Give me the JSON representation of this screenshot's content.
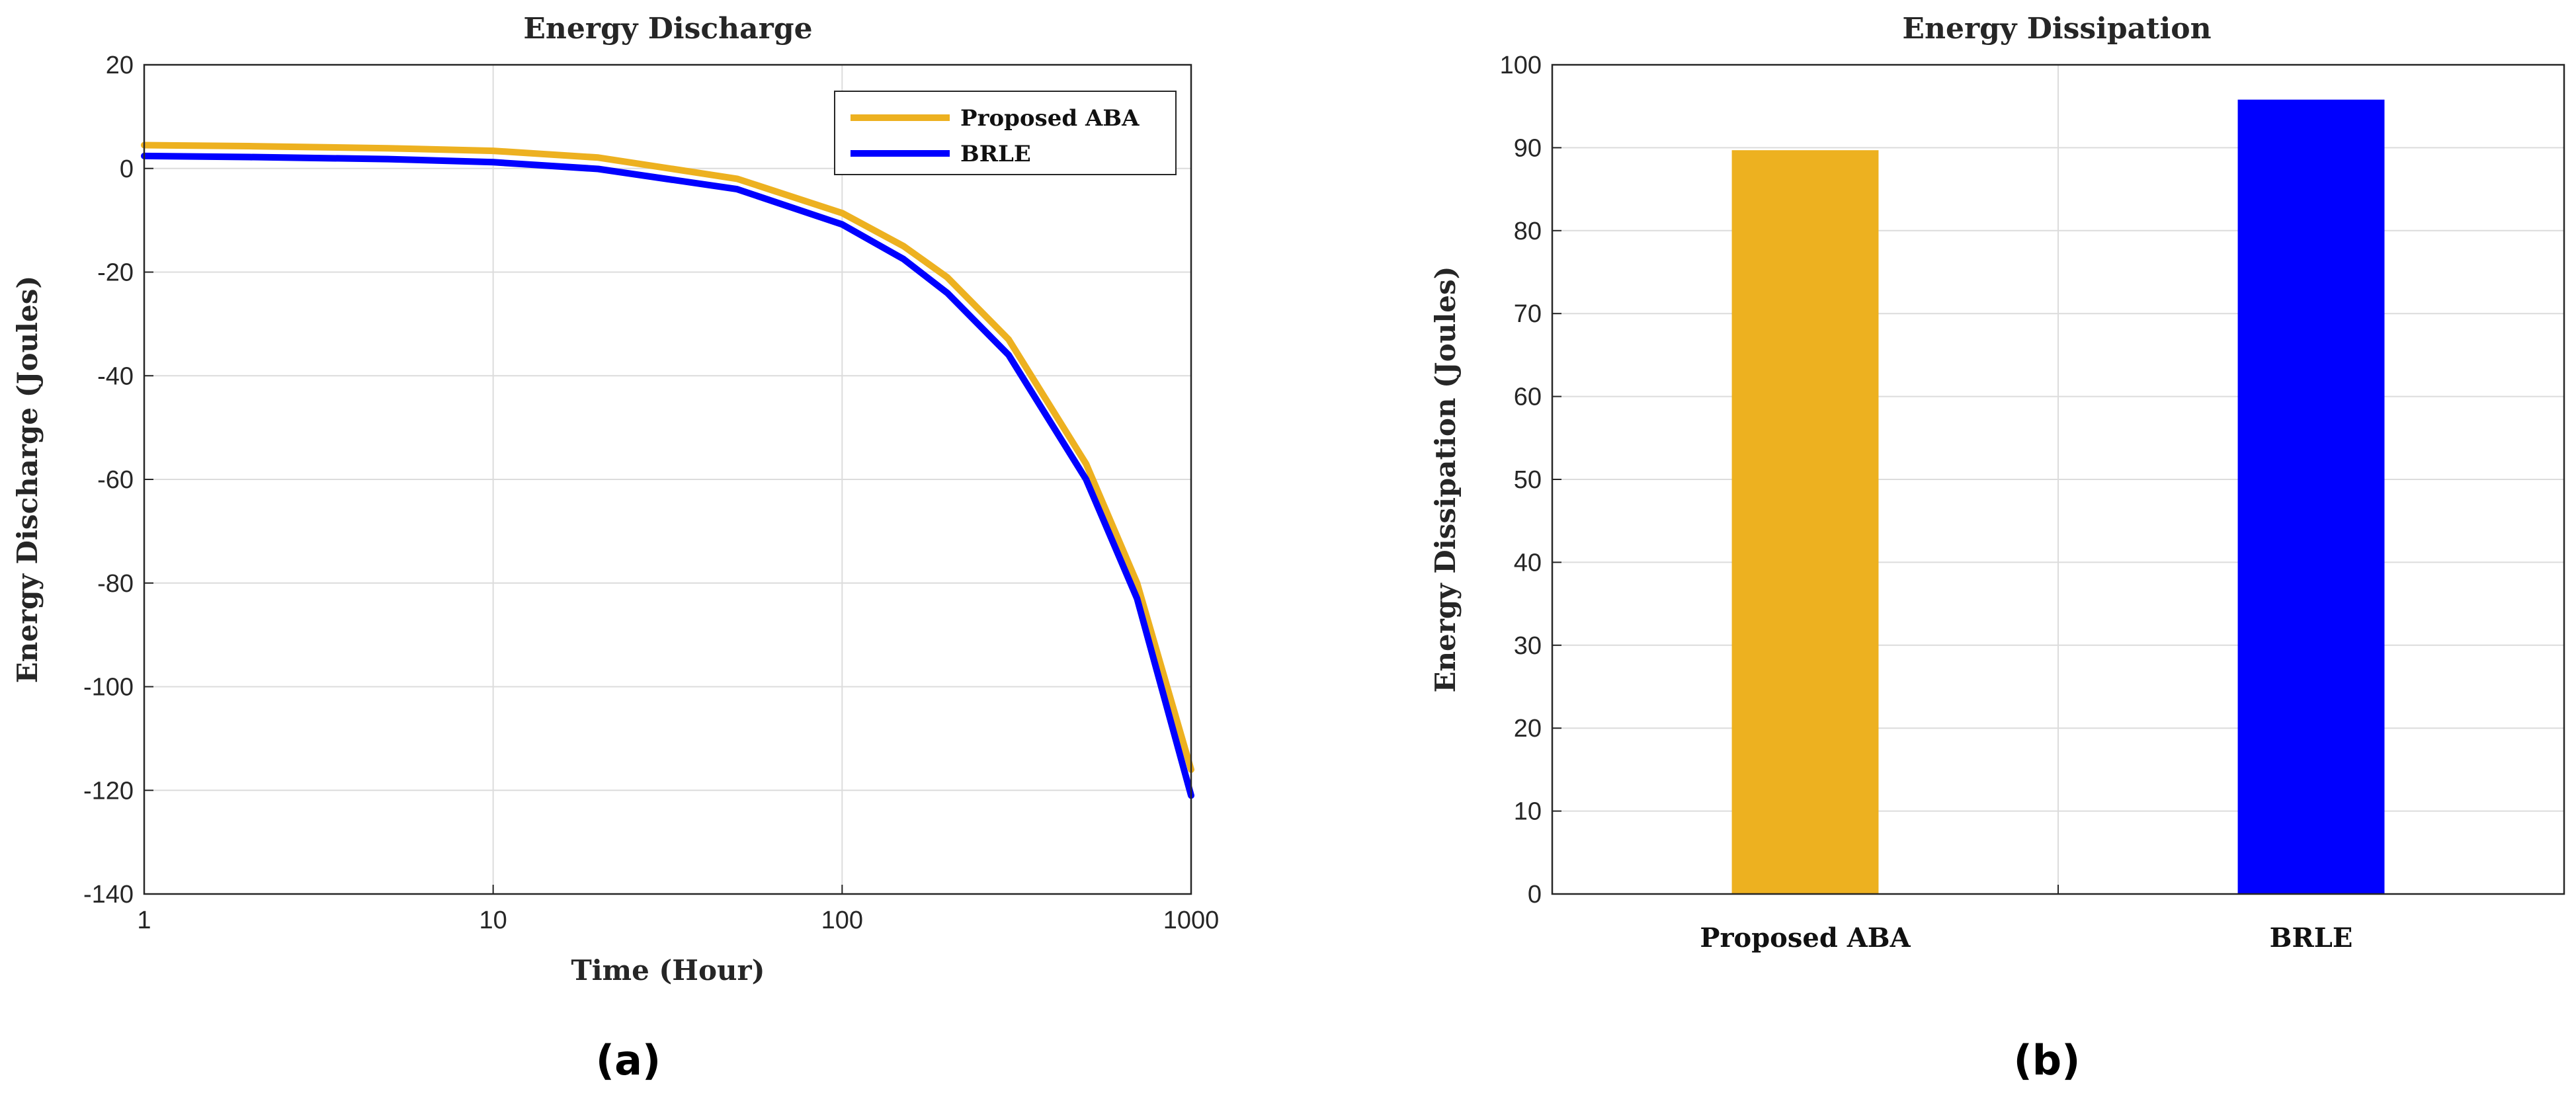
{
  "chart_data": [
    {
      "type": "line",
      "title": "Energy Discharge",
      "xlabel": "Time (Hour)",
      "ylabel": "Energy Discharge (Joules)",
      "xscale": "log",
      "xlim": [
        1,
        1000
      ],
      "ylim": [
        -140,
        20
      ],
      "xticks": [
        1,
        10,
        100,
        1000
      ],
      "yticks": [
        -140,
        -120,
        -100,
        -80,
        -60,
        -40,
        -20,
        0,
        20
      ],
      "grid": true,
      "legend": "top-right",
      "panel_label": "(a)",
      "series": [
        {
          "name": "Proposed ABA",
          "color": "#EDB120",
          "x": [
            1,
            2,
            5,
            10,
            20,
            50,
            100,
            150,
            200,
            300,
            500,
            700,
            1000
          ],
          "y": [
            4.5,
            4.3,
            3.9,
            3.4,
            2.1,
            -2.0,
            -8.6,
            -15.0,
            -21.0,
            -33.0,
            -57.0,
            -80.0,
            -116.0
          ]
        },
        {
          "name": "BRLE",
          "color": "#0000FF",
          "x": [
            1,
            2,
            5,
            10,
            20,
            50,
            100,
            150,
            200,
            300,
            500,
            700,
            1000
          ],
          "y": [
            2.4,
            2.2,
            1.8,
            1.2,
            -0.1,
            -4.0,
            -10.8,
            -17.5,
            -24.0,
            -36.0,
            -60.0,
            -83.0,
            -121.0
          ]
        }
      ]
    },
    {
      "type": "bar",
      "title": "Energy Dissipation",
      "xlabel": "",
      "ylabel": "Energy Dissipation (Joules)",
      "categories": [
        "Proposed ABA",
        "BRLE"
      ],
      "values": [
        89.7,
        95.8
      ],
      "colors": [
        "#EDB120",
        "#0000FF"
      ],
      "ylim": [
        0,
        100
      ],
      "yticks": [
        0,
        10,
        20,
        30,
        40,
        50,
        60,
        70,
        80,
        90,
        100
      ],
      "grid": true,
      "panel_label": "(b)"
    }
  ]
}
